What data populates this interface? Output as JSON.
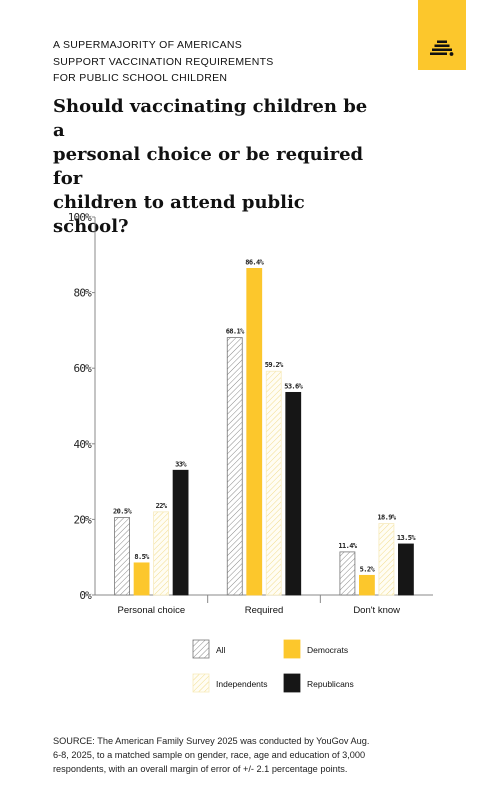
{
  "header": {
    "kicker_lines": [
      "A SUPERMAJORITY OF AMERICANS",
      "SUPPORT VACCINATION REQUIREMENTS",
      "FOR PUBLIC SCHOOL CHILDREN"
    ],
    "headline_lines": [
      "Should vaccinating children be a",
      "personal choice or be required for",
      "children to attend public school?"
    ],
    "logo_icon": "beehive-icon"
  },
  "colors": {
    "accent": "#fcc72c",
    "all": "#999999",
    "democrats": "#fcc72c",
    "independents": "#f7e8b0",
    "republicans": "#161616",
    "axis": "#888888"
  },
  "chart_data": {
    "type": "bar",
    "title": "",
    "xlabel": "",
    "ylabel": "",
    "categories": [
      "Personal choice",
      "Required",
      "Don't know"
    ],
    "series": [
      {
        "name": "All",
        "values": [
          20.5,
          68.1,
          11.4
        ],
        "labels": [
          "20.5%",
          "68.1%",
          "11.4%"
        ],
        "pattern": "hatch-gray"
      },
      {
        "name": "Democrats",
        "values": [
          8.5,
          86.4,
          5.2
        ],
        "labels": [
          "8.5%",
          "86.4%",
          "5.2%"
        ],
        "pattern": "solid-yellow"
      },
      {
        "name": "Independents",
        "values": [
          22,
          59.2,
          18.9
        ],
        "labels": [
          "22%",
          "59.2%",
          "18.9%"
        ],
        "pattern": "hatch-yellow"
      },
      {
        "name": "Republicans",
        "values": [
          33,
          53.6,
          13.5
        ],
        "labels": [
          "33%",
          "53.6%",
          "13.5%"
        ],
        "pattern": "solid-black"
      }
    ],
    "ylim": [
      0,
      100
    ],
    "yticks": [
      0,
      20,
      40,
      60,
      80,
      100
    ],
    "ytick_labels": [
      "0%",
      "20%",
      "40%",
      "60%",
      "80%",
      "100%"
    ],
    "grid": false,
    "legend_position": "bottom"
  },
  "footer": {
    "source_lines": [
      "SOURCE: The American Family Survey 2025 was conducted by YouGov Aug.",
      "6-8, 2025, to a matched sample on gender, race, age and education of 3,000",
      "respondents, with an overall margin of error of +/- 2.1 percentage points."
    ]
  }
}
